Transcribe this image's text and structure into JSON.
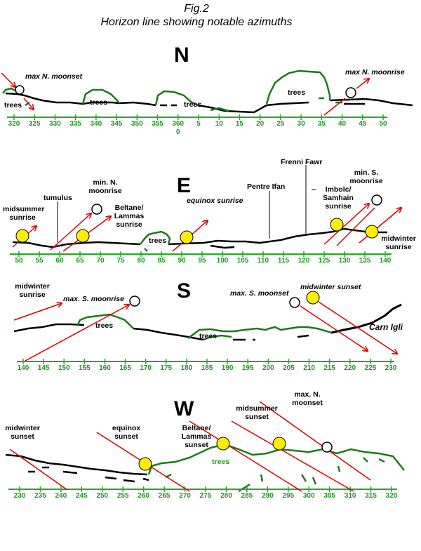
{
  "title": {
    "fig": "Fig.2",
    "caption": "Horizon line showing notable azimuths"
  },
  "colors": {
    "horizon": "#000000",
    "trees": "#1a7a1a",
    "axis": "#22aa22",
    "arrow": "#dd0000",
    "sun": "#ffee00",
    "moon": "#ffffff"
  },
  "panels": {
    "north": {
      "direction": "N",
      "ticks": [
        "320",
        "325",
        "330",
        "335",
        "340",
        "345",
        "350",
        "355",
        "360",
        "5",
        "10",
        "15",
        "20",
        "25",
        "30",
        "35",
        "40",
        "45",
        "50"
      ],
      "zero_label": "0",
      "labels": {
        "max_moonset": "max N. moonset",
        "max_moonrise": "max N. moonrise",
        "trees_1": "trees",
        "trees_2": "trees",
        "trees_3": "trees",
        "trees_4": "trees"
      }
    },
    "east": {
      "direction": "E",
      "ticks": [
        "50",
        "55",
        "60",
        "65",
        "70",
        "75",
        "80",
        "85",
        "90",
        "95",
        "100",
        "105",
        "110",
        "115",
        "120",
        "125",
        "130",
        "135",
        "140"
      ],
      "labels": {
        "midsummer_sunrise": [
          "midsummer",
          "sunrise"
        ],
        "tumulus": "tumulus",
        "min_n_moonrise": [
          "min. N.",
          "moonrise"
        ],
        "beltane_sunrise": [
          "Beltane/",
          "Lammas",
          "sunrise"
        ],
        "equinox_sunrise": "equinox sunrise",
        "trees": "trees",
        "pentre_ifan": "Pentre Ifan",
        "frenni_fawr": "Frenni Fawr",
        "imbolc_sunrise": [
          "Imbolc/",
          "Samhain",
          "sunrise"
        ],
        "min_s_moonrise": [
          "min. S.",
          "moonrise"
        ],
        "midwinter_sunrise": [
          "midwinter",
          "sunrise"
        ]
      }
    },
    "south": {
      "direction": "S",
      "ticks": [
        "140",
        "145",
        "150",
        "155",
        "160",
        "165",
        "170",
        "175",
        "180",
        "185",
        "190",
        "195",
        "200",
        "205",
        "210",
        "215",
        "220",
        "225",
        "230"
      ],
      "labels": {
        "midwinter_sunrise": [
          "midwinter",
          "sunrise"
        ],
        "max_s_moonrise": "max. S. moonrise",
        "max_s_moonset": "max. S. moonset",
        "midwinter_sunset": "midwinter sunset",
        "trees_1": "trees",
        "trees_2": "trees",
        "carn_igli": "Carn Igli"
      }
    },
    "west": {
      "direction": "W",
      "ticks": [
        "230",
        "235",
        "240",
        "245",
        "250",
        "255",
        "260",
        "265",
        "270",
        "275",
        "280",
        "285",
        "290",
        "295",
        "300",
        "305",
        "310",
        "315",
        "320"
      ],
      "labels": {
        "midwinter_sunset": [
          "midwinter",
          "sunset"
        ],
        "equinox_sunset": [
          "equinox",
          "sunset"
        ],
        "beltane_sunset": [
          "Beltane/",
          "Lammas",
          "sunset"
        ],
        "midsummer_sunset": [
          "midsummer",
          "sunset"
        ],
        "max_n_moonset": [
          "max. N.",
          "moonset"
        ],
        "trees": "trees"
      }
    }
  }
}
